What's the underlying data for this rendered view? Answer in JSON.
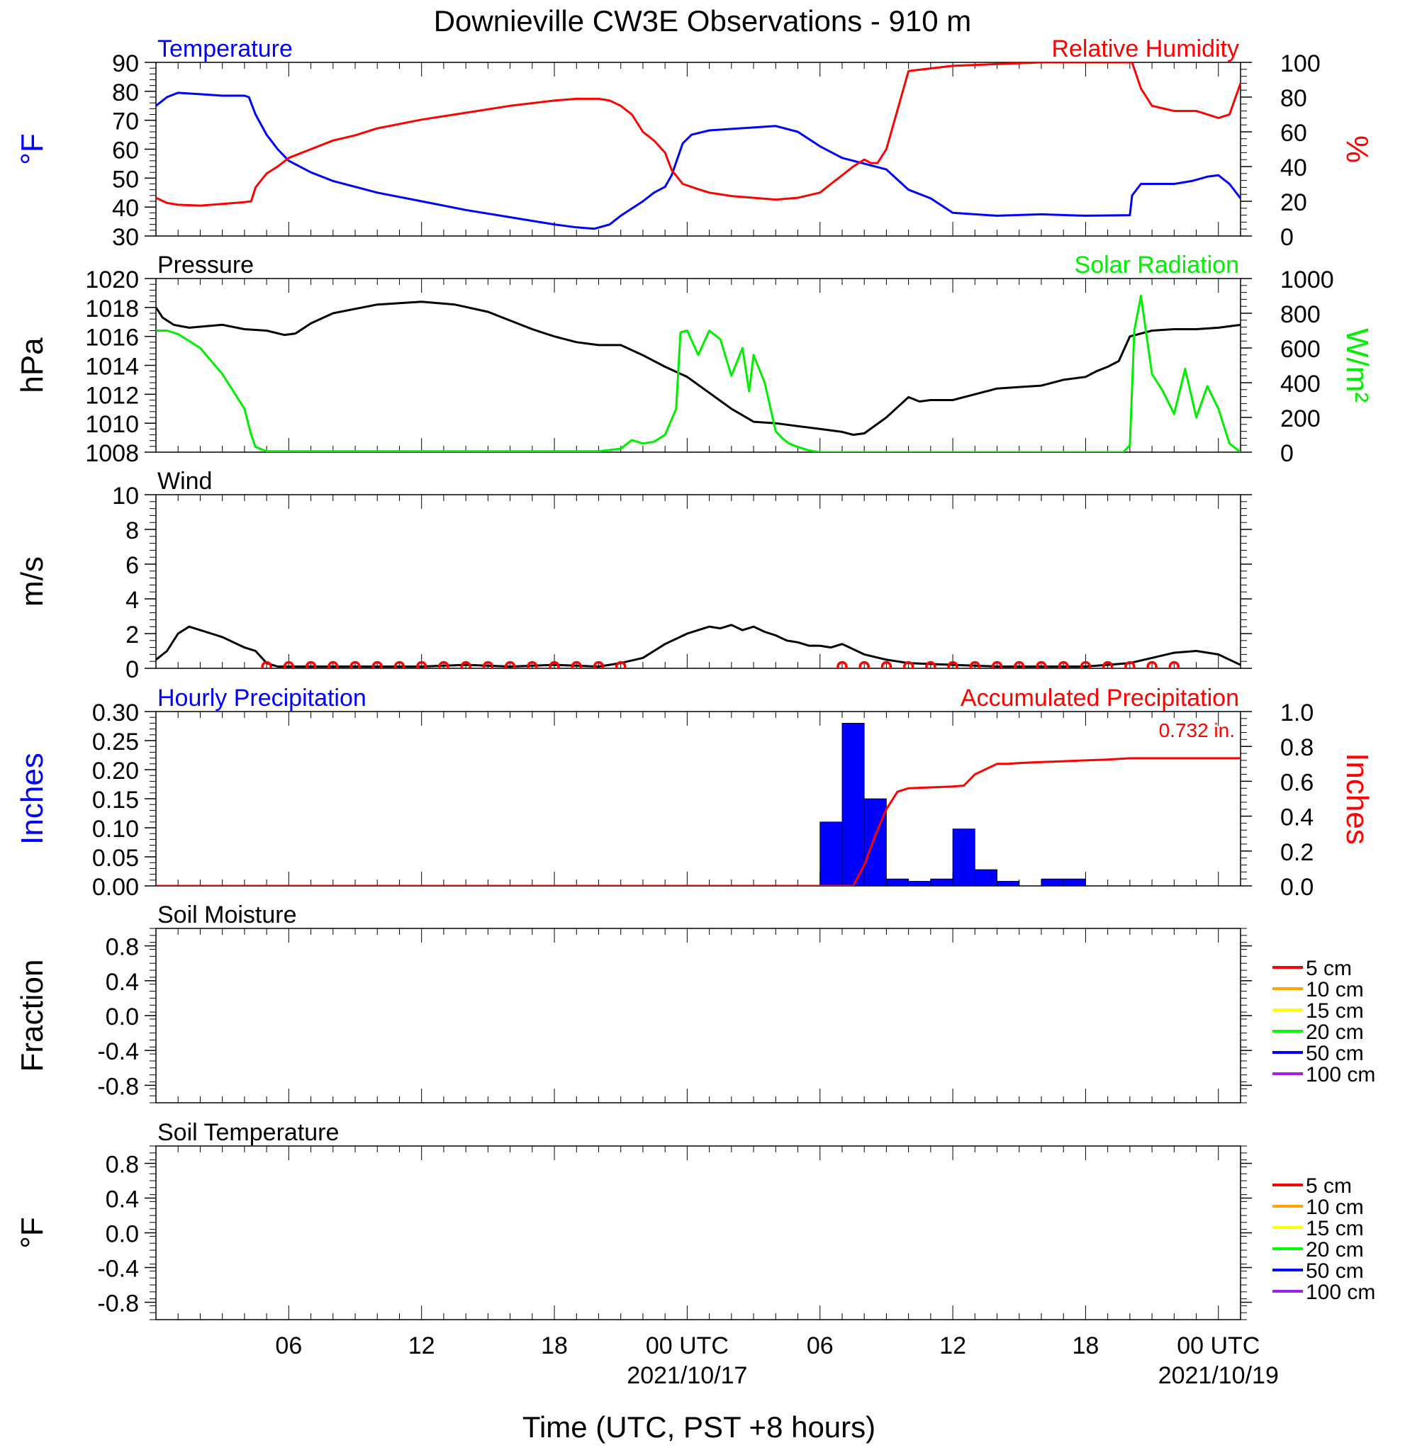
{
  "title": "Downieville CW3E Observations - 910 m",
  "xlabel": "Time (UTC, PST +8 hours)",
  "x_ticks": [
    {
      "hour": 6,
      "label": "06",
      "date": ""
    },
    {
      "hour": 12,
      "label": "12",
      "date": ""
    },
    {
      "hour": 18,
      "label": "18",
      "date": ""
    },
    {
      "hour": 24,
      "label": "00 UTC",
      "date": "2021/10/17"
    },
    {
      "hour": 30,
      "label": "06",
      "date": ""
    },
    {
      "hour": 36,
      "label": "12",
      "date": ""
    },
    {
      "hour": 42,
      "label": "18",
      "date": ""
    },
    {
      "hour": 48,
      "label": "00 UTC",
      "date": "2021/10/19"
    }
  ],
  "colors": {
    "blue": "#0000ff",
    "red": "#ff0000",
    "green": "#00ee00",
    "black": "#000000"
  },
  "chart_data": [
    {
      "type": "line",
      "left_title": "Temperature",
      "right_title": "Relative Humidity",
      "ylabel_left": "°F",
      "ylabel_right": "%",
      "ylim_left": [
        30,
        90
      ],
      "ylim_right": [
        0,
        100
      ],
      "y_ticks_left": [
        "90",
        "80",
        "70",
        "60",
        "50",
        "40",
        "30"
      ],
      "y_ticks_right": [
        "100",
        "80",
        "60",
        "40",
        "20",
        "0"
      ],
      "series": [
        {
          "key": "temp",
          "axis": "left",
          "color": "#0000ff",
          "x": [
            0,
            0.5,
            1,
            2,
            3,
            4,
            4.2,
            4.5,
            5,
            5.5,
            6,
            7,
            8,
            10,
            12,
            14,
            16,
            18,
            19,
            19.8,
            20.5,
            21,
            22,
            22.5,
            23,
            23.3,
            23.8,
            24.2,
            25,
            26,
            27,
            28,
            29,
            30,
            31,
            32,
            33,
            34,
            35,
            36,
            38,
            40,
            42,
            44,
            44.1,
            44.5,
            46,
            46.8,
            47.5,
            48,
            48.5,
            49
          ],
          "y": [
            75,
            78,
            79.5,
            79,
            78.5,
            78.5,
            78,
            72,
            65,
            60,
            56,
            52,
            49,
            45,
            42,
            39,
            36.5,
            34,
            33,
            32.5,
            34,
            37,
            42,
            45,
            47,
            51,
            62,
            65,
            66.5,
            67,
            67.5,
            68,
            66,
            61,
            57,
            55,
            53,
            46,
            43,
            38,
            37,
            37.5,
            37,
            37.2,
            44,
            48,
            48,
            49,
            50.5,
            51,
            48,
            43
          ]
        },
        {
          "key": "rh",
          "axis": "right",
          "color": "#ff0000",
          "x": [
            0,
            0.5,
            1,
            2,
            3,
            4,
            4.3,
            4.5,
            5,
            5.5,
            6,
            7,
            8,
            9,
            10,
            12,
            14,
            16,
            18,
            19,
            20,
            20.5,
            21,
            21.5,
            22,
            22.5,
            23,
            23.3,
            23.8,
            24.5,
            25,
            26,
            27,
            28,
            29,
            30,
            30.5,
            31,
            31.5,
            32,
            32.3,
            32.6,
            33,
            34,
            36,
            38,
            40,
            42,
            44,
            44.1,
            44.5,
            45,
            46,
            47,
            47.5,
            48,
            48.5,
            49
          ],
          "y": [
            22,
            19,
            18,
            17.5,
            18.5,
            19.5,
            20,
            28,
            36,
            40,
            45,
            50,
            55,
            58,
            62,
            67,
            71,
            75,
            78,
            79,
            79,
            78,
            75,
            70,
            60,
            55,
            48,
            38,
            30,
            27,
            25,
            23,
            22,
            21,
            22,
            25,
            30,
            35,
            40,
            44,
            42,
            42,
            50,
            95,
            98,
            99,
            100,
            100,
            100,
            100,
            85,
            75,
            72,
            72,
            70,
            68,
            70,
            88
          ]
        }
      ]
    },
    {
      "type": "line",
      "left_title": "Pressure",
      "right_title": "Solar Radiation",
      "ylabel_left": "hPa",
      "ylabel_right": "W/m²",
      "ylim_left": [
        1008,
        1020
      ],
      "ylim_right": [
        0,
        1000
      ],
      "y_ticks_left": [
        "1020",
        "1018",
        "1016",
        "1014",
        "1012",
        "1010",
        "1008"
      ],
      "y_ticks_right": [
        "1000",
        "800",
        "600",
        "400",
        "200",
        "0"
      ],
      "series": [
        {
          "key": "pressure",
          "axis": "left",
          "color": "#000000",
          "x": [
            0,
            0.3,
            0.8,
            1.5,
            3,
            4,
            5,
            5.8,
            6.3,
            7,
            8,
            10,
            12,
            13.5,
            15,
            17,
            18,
            19,
            20,
            21,
            22,
            23,
            24,
            25,
            26,
            27,
            28,
            29,
            30,
            31,
            31.5,
            32,
            33,
            34,
            34.5,
            35,
            36,
            37,
            38,
            39,
            40,
            41,
            42,
            42.5,
            43,
            43.5,
            44,
            45,
            46,
            47,
            48,
            49
          ],
          "y": [
            1018,
            1017.3,
            1016.8,
            1016.6,
            1016.8,
            1016.5,
            1016.4,
            1016.1,
            1016.2,
            1016.9,
            1017.6,
            1018.2,
            1018.4,
            1018.2,
            1017.7,
            1016.5,
            1016.0,
            1015.6,
            1015.4,
            1015.4,
            1014.7,
            1013.9,
            1013.2,
            1012.1,
            1011.0,
            1010.1,
            1010.0,
            1009.8,
            1009.6,
            1009.4,
            1009.2,
            1009.3,
            1010.4,
            1011.8,
            1011.5,
            1011.6,
            1011.6,
            1012.0,
            1012.4,
            1012.5,
            1012.6,
            1013.0,
            1013.2,
            1013.6,
            1013.9,
            1014.3,
            1016.0,
            1016.4,
            1016.5,
            1016.5,
            1016.6,
            1016.8
          ]
        },
        {
          "key": "solar",
          "axis": "right",
          "color": "#00ee00",
          "x": [
            0,
            0.5,
            1,
            2,
            3,
            4,
            4.3,
            4.5,
            5,
            20,
            21,
            21.5,
            22,
            22.5,
            23,
            23.5,
            23.7,
            24,
            24.5,
            25,
            25.5,
            26,
            26.5,
            26.8,
            27,
            27.5,
            28,
            28.3,
            28.6,
            29,
            29.5,
            30,
            43.7,
            44,
            44.2,
            44.5,
            45,
            45.5,
            46,
            46.5,
            47,
            47.5,
            48,
            48.5,
            49
          ],
          "y": [
            700,
            700,
            680,
            600,
            450,
            250,
            100,
            30,
            5,
            5,
            20,
            70,
            50,
            60,
            100,
            250,
            690,
            700,
            560,
            700,
            650,
            440,
            600,
            350,
            560,
            400,
            120,
            80,
            50,
            30,
            10,
            0,
            0,
            40,
            700,
            900,
            450,
            350,
            220,
            480,
            200,
            380,
            250,
            50,
            0
          ]
        }
      ]
    },
    {
      "type": "line",
      "left_title": "Wind",
      "ylabel_left": "m/s",
      "ylim_left": [
        0,
        10
      ],
      "y_ticks_left": [
        "10",
        "8",
        "6",
        "4",
        "2",
        "0"
      ],
      "series": [
        {
          "key": "wind_speed",
          "axis": "left",
          "color": "#000000",
          "x": [
            0,
            0.5,
            1,
            1.5,
            2,
            2.5,
            3,
            3.5,
            4,
            4.5,
            5,
            5.5,
            6,
            8,
            10,
            12,
            14,
            16,
            18,
            20,
            21,
            22,
            22.5,
            23,
            23.5,
            24,
            24.5,
            25,
            25.5,
            26,
            26.5,
            27,
            27.5,
            28,
            28.5,
            29,
            29.5,
            30,
            30.5,
            31,
            31.5,
            32,
            33,
            34,
            36,
            38,
            40,
            42,
            44,
            45,
            46,
            47,
            48,
            48.5,
            49
          ],
          "y": [
            0.5,
            1.0,
            2.0,
            2.4,
            2.2,
            2.0,
            1.8,
            1.5,
            1.2,
            1.0,
            0.3,
            0.1,
            0.1,
            0.1,
            0.1,
            0.1,
            0.2,
            0.1,
            0.2,
            0.1,
            0.3,
            0.6,
            1.0,
            1.4,
            1.7,
            2.0,
            2.2,
            2.4,
            2.3,
            2.5,
            2.2,
            2.4,
            2.1,
            1.9,
            1.6,
            1.5,
            1.3,
            1.3,
            1.2,
            1.4,
            1.1,
            0.8,
            0.5,
            0.3,
            0.2,
            0.1,
            0.1,
            0.1,
            0.3,
            0.6,
            0.9,
            1.0,
            0.8,
            0.5,
            0.2
          ]
        }
      ],
      "wind_markers_x": [
        5,
        6,
        7,
        8,
        9,
        10,
        11,
        12,
        13,
        14,
        15,
        16,
        17,
        18,
        19,
        20,
        21,
        31,
        32,
        33,
        34,
        35,
        36,
        37,
        38,
        39,
        40,
        41,
        42,
        43,
        44,
        45,
        46
      ]
    },
    {
      "type": "bar",
      "left_title": "Hourly Precipitation",
      "right_title": "Accumulated Precipitation",
      "total_label": "0.732 in.",
      "ylabel_left": "Inches",
      "ylabel_right": "Inches",
      "ylim_left": [
        0,
        0.3
      ],
      "ylim_right": [
        0,
        1.0
      ],
      "y_ticks_left": [
        "0.30",
        "0.25",
        "0.20",
        "0.15",
        "0.10",
        "0.05",
        "0.00"
      ],
      "y_ticks_right": [
        "1.0",
        "0.8",
        "0.6",
        "0.4",
        "0.2",
        "0.0"
      ],
      "bars": {
        "color": "#0000ff",
        "x": [
          31,
          32,
          33,
          34,
          35,
          36,
          37,
          38,
          39,
          40,
          41,
          42,
          43
        ],
        "values": [
          0.11,
          0.28,
          0.15,
          0.012,
          0.008,
          0.012,
          0.098,
          0.028,
          0.008,
          0,
          0.012,
          0.012,
          0
        ]
      },
      "series": [
        {
          "key": "accum",
          "axis": "right",
          "color": "#ff0000",
          "x": [
            0,
            31.5,
            32,
            32.5,
            33,
            33.5,
            34,
            35,
            36,
            36.5,
            37,
            37.5,
            38,
            38.5,
            39,
            40,
            41,
            42,
            43,
            44,
            45,
            46,
            47,
            48,
            49
          ],
          "y": [
            0,
            0,
            0.12,
            0.29,
            0.44,
            0.54,
            0.56,
            0.565,
            0.57,
            0.575,
            0.64,
            0.67,
            0.7,
            0.7,
            0.705,
            0.71,
            0.715,
            0.72,
            0.725,
            0.732,
            0.732,
            0.732,
            0.732,
            0.732,
            0.732
          ]
        }
      ]
    },
    {
      "type": "line",
      "left_title": "Soil Moisture",
      "ylabel_left": "Fraction",
      "ylim_left": [
        -1.0,
        1.0
      ],
      "y_ticks_left": [
        "0.8",
        "0.4",
        "0.0",
        "-0.4",
        "-0.8"
      ],
      "legend": [
        {
          "label": "5 cm",
          "color": "#ff0000"
        },
        {
          "label": "10 cm",
          "color": "#ffa500"
        },
        {
          "label": "15 cm",
          "color": "#ffff00"
        },
        {
          "label": "20 cm",
          "color": "#00ff00"
        },
        {
          "label": "50 cm",
          "color": "#0000ff"
        },
        {
          "label": "100 cm",
          "color": "#a020f0"
        }
      ],
      "series": []
    },
    {
      "type": "line",
      "left_title": "Soil Temperature",
      "ylabel_left": "°F",
      "ylim_left": [
        -1.0,
        1.0
      ],
      "y_ticks_left": [
        "0.8",
        "0.4",
        "0.0",
        "-0.4",
        "-0.8"
      ],
      "legend": [
        {
          "label": "5 cm",
          "color": "#ff0000"
        },
        {
          "label": "10 cm",
          "color": "#ffa500"
        },
        {
          "label": "15 cm",
          "color": "#ffff00"
        },
        {
          "label": "20 cm",
          "color": "#00ff00"
        },
        {
          "label": "50 cm",
          "color": "#0000ff"
        },
        {
          "label": "100 cm",
          "color": "#a020f0"
        }
      ],
      "series": []
    }
  ]
}
